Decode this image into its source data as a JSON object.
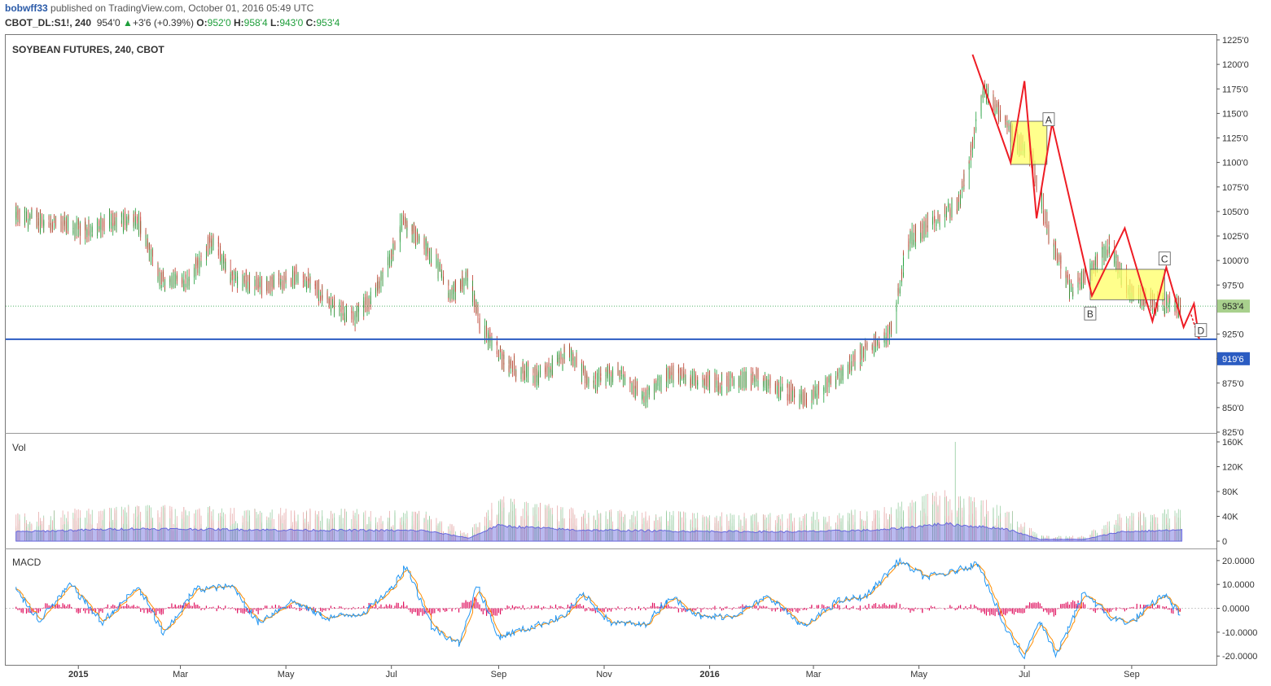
{
  "header": {
    "author": "bobwff33",
    "published": "published on TradingView.com, October 01, 2016 05:49 UTC",
    "symbol": "CBOT_DL:S1!, 240",
    "last": "954'0",
    "change": "+3'6 (+0.39%)",
    "open_label": "O:",
    "open": "952'0",
    "high_label": "H:",
    "high": "958'4",
    "low_label": "L:",
    "low": "943'0",
    "close_label": "C:",
    "close": "953'4"
  },
  "colors": {
    "up": "#1e9e3a",
    "down": "#c0392b",
    "support": "#2b5cc2",
    "pattern": "#ee1c24",
    "box": "#ffff66",
    "macd": "#2196f3",
    "signal": "#ff8c00",
    "hist": "#e0115f",
    "vol_ma": "#6666dd"
  },
  "chart_data": [
    {
      "type": "candlestick",
      "title": "SOYBEAN FUTURES, 240, CBOT",
      "x_ticks": [
        "2015",
        "Mar",
        "May",
        "Jul",
        "Sep",
        "Nov",
        "2016",
        "Mar",
        "May",
        "Jul",
        "Sep"
      ],
      "x_tick_dates": [
        "2015-01-01",
        "2015-03-01",
        "2015-05-01",
        "2015-07-01",
        "2015-09-01",
        "2015-11-01",
        "2016-01-01",
        "2016-03-01",
        "2016-05-01",
        "2016-07-01",
        "2016-09-01"
      ],
      "x_range": [
        "2014-11-20",
        "2016-10-20"
      ],
      "ylim": [
        825,
        1225
      ],
      "y_ticks": [
        "1225'0",
        "1200'0",
        "1175'0",
        "1150'0",
        "1125'0",
        "1100'0",
        "1075'0",
        "1050'0",
        "1025'0",
        "1000'0",
        "975'0",
        "950'0",
        "925'0",
        "900'0",
        "875'0",
        "850'0",
        "825'0"
      ],
      "y_tick_values": [
        1225,
        1200,
        1175,
        1150,
        1125,
        1100,
        1075,
        1050,
        1025,
        1000,
        975,
        950,
        925,
        900,
        875,
        850,
        825
      ],
      "price_path": [
        [
          "2014-11-26",
          1045
        ],
        [
          "2014-12-15",
          1040
        ],
        [
          "2015-01-05",
          1030
        ],
        [
          "2015-01-20",
          1040
        ],
        [
          "2015-02-05",
          1040
        ],
        [
          "2015-02-18",
          980
        ],
        [
          "2015-03-05",
          980
        ],
        [
          "2015-03-20",
          1020
        ],
        [
          "2015-04-01",
          980
        ],
        [
          "2015-04-20",
          975
        ],
        [
          "2015-05-10",
          985
        ],
        [
          "2015-05-25",
          960
        ],
        [
          "2015-06-10",
          940
        ],
        [
          "2015-06-25",
          975
        ],
        [
          "2015-07-08",
          1040
        ],
        [
          "2015-07-25",
          1005
        ],
        [
          "2015-08-05",
          965
        ],
        [
          "2015-08-15",
          985
        ],
        [
          "2015-08-22",
          935
        ],
        [
          "2015-09-05",
          895
        ],
        [
          "2015-09-25",
          880
        ],
        [
          "2015-10-12",
          905
        ],
        [
          "2015-10-25",
          875
        ],
        [
          "2015-11-10",
          885
        ],
        [
          "2015-11-25",
          860
        ],
        [
          "2015-12-10",
          885
        ],
        [
          "2015-12-25",
          880
        ],
        [
          "2016-01-10",
          875
        ],
        [
          "2016-01-25",
          880
        ],
        [
          "2016-02-10",
          870
        ],
        [
          "2016-02-25",
          858
        ],
        [
          "2016-03-15",
          880
        ],
        [
          "2016-04-01",
          910
        ],
        [
          "2016-04-15",
          925
        ],
        [
          "2016-04-25",
          1020
        ],
        [
          "2016-05-10",
          1040
        ],
        [
          "2016-05-25",
          1060
        ],
        [
          "2016-06-08",
          1175
        ],
        [
          "2016-06-20",
          1140
        ],
        [
          "2016-06-28",
          1120
        ],
        [
          "2016-07-05",
          1110
        ],
        [
          "2016-07-15",
          1030
        ],
        [
          "2016-07-28",
          970
        ],
        [
          "2016-08-10",
          995
        ],
        [
          "2016-08-20",
          1015
        ],
        [
          "2016-08-30",
          970
        ],
        [
          "2016-09-10",
          960
        ],
        [
          "2016-09-20",
          955
        ],
        [
          "2016-09-30",
          953.5
        ]
      ],
      "last_price": {
        "value": 953.5,
        "label": "953'4"
      },
      "support_line": {
        "value": 919.75,
        "label": "919'6"
      },
      "pattern_points": [
        {
          "date": "2016-06-01",
          "price": 1210
        },
        {
          "date": "2016-06-23",
          "price": 1100
        },
        {
          "date": "2016-07-01",
          "price": 1183
        },
        {
          "date": "2016-07-08",
          "price": 1043
        },
        {
          "date": "2016-07-17",
          "price": 1140
        },
        {
          "date": "2016-08-09",
          "price": 964
        },
        {
          "date": "2016-08-28",
          "price": 1033
        },
        {
          "date": "2016-09-13",
          "price": 938
        },
        {
          "date": "2016-09-21",
          "price": 993
        },
        {
          "date": "2016-10-01",
          "price": 932
        },
        {
          "date": "2016-10-07",
          "price": 956
        },
        {
          "date": "2016-10-10",
          "price": 920
        }
      ],
      "zones": [
        {
          "from": "2016-06-23",
          "to": "2016-07-14",
          "high": 1142,
          "low": 1098
        },
        {
          "from": "2016-08-08",
          "to": "2016-09-20",
          "high": 991,
          "low": 960
        }
      ],
      "point_labels": [
        {
          "text": "A",
          "date": "2016-07-15",
          "price": 1144
        },
        {
          "text": "B",
          "date": "2016-08-08",
          "price": 946
        },
        {
          "text": "C",
          "date": "2016-09-20",
          "price": 1002
        },
        {
          "text": "D",
          "date": "2016-10-11",
          "price": 929
        }
      ]
    },
    {
      "type": "bar",
      "title": "Vol",
      "ylim": [
        0,
        160000
      ],
      "y_ticks": [
        "160K",
        "120K",
        "80K",
        "40K",
        "0"
      ],
      "y_tick_values": [
        160000,
        120000,
        80000,
        40000,
        0
      ],
      "peak": {
        "date": "2016-05-22",
        "value": 160000
      },
      "ma_path": [
        [
          "2014-11-26",
          15000
        ],
        [
          "2015-02-01",
          20000
        ],
        [
          "2015-05-01",
          18000
        ],
        [
          "2015-07-20",
          17000
        ],
        [
          "2015-08-15",
          5000
        ],
        [
          "2015-08-31",
          25000
        ],
        [
          "2015-10-15",
          18000
        ],
        [
          "2015-12-20",
          16000
        ],
        [
          "2016-02-15",
          15000
        ],
        [
          "2016-04-10",
          18000
        ],
        [
          "2016-05-15",
          28000
        ],
        [
          "2016-06-20",
          20000
        ],
        [
          "2016-07-10",
          3000
        ],
        [
          "2016-08-05",
          3000
        ],
        [
          "2016-08-25",
          15000
        ],
        [
          "2016-09-30",
          18000
        ]
      ]
    },
    {
      "type": "line",
      "title": "MACD",
      "ylim": [
        -23,
        22
      ],
      "y_ticks": [
        "20.0000",
        "10.0000",
        "0.0000",
        "-10.0000",
        "-20.0000"
      ],
      "y_tick_values": [
        20,
        10,
        0,
        -10,
        -20
      ],
      "macd_path": [
        [
          "2014-11-26",
          8
        ],
        [
          "2014-12-10",
          -5
        ],
        [
          "2014-12-28",
          10
        ],
        [
          "2015-01-15",
          -6
        ],
        [
          "2015-02-05",
          9
        ],
        [
          "2015-02-20",
          -11
        ],
        [
          "2015-03-10",
          8
        ],
        [
          "2015-04-01",
          9
        ],
        [
          "2015-04-15",
          -6
        ],
        [
          "2015-05-05",
          3
        ],
        [
          "2015-05-25",
          -4
        ],
        [
          "2015-06-15",
          -2
        ],
        [
          "2015-07-01",
          8
        ],
        [
          "2015-07-10",
          18
        ],
        [
          "2015-07-25",
          -8
        ],
        [
          "2015-08-10",
          -15
        ],
        [
          "2015-08-20",
          10
        ],
        [
          "2015-09-01",
          -12
        ],
        [
          "2015-09-20",
          -8
        ],
        [
          "2015-10-10",
          -3
        ],
        [
          "2015-10-20",
          6
        ],
        [
          "2015-11-05",
          -6
        ],
        [
          "2015-11-25",
          -7
        ],
        [
          "2015-12-10",
          5
        ],
        [
          "2015-12-28",
          -4
        ],
        [
          "2016-01-15",
          -3
        ],
        [
          "2016-02-05",
          5
        ],
        [
          "2016-02-25",
          -8
        ],
        [
          "2016-03-15",
          3
        ],
        [
          "2016-04-01",
          5
        ],
        [
          "2016-04-20",
          20
        ],
        [
          "2016-05-05",
          13
        ],
        [
          "2016-05-20",
          15
        ],
        [
          "2016-06-05",
          19
        ],
        [
          "2016-06-20",
          -8
        ],
        [
          "2016-07-01",
          -20
        ],
        [
          "2016-07-10",
          -5
        ],
        [
          "2016-07-20",
          -20
        ],
        [
          "2016-08-05",
          7
        ],
        [
          "2016-08-20",
          -4
        ],
        [
          "2016-09-01",
          -6
        ],
        [
          "2016-09-20",
          6
        ],
        [
          "2016-09-30",
          -3
        ]
      ]
    }
  ]
}
